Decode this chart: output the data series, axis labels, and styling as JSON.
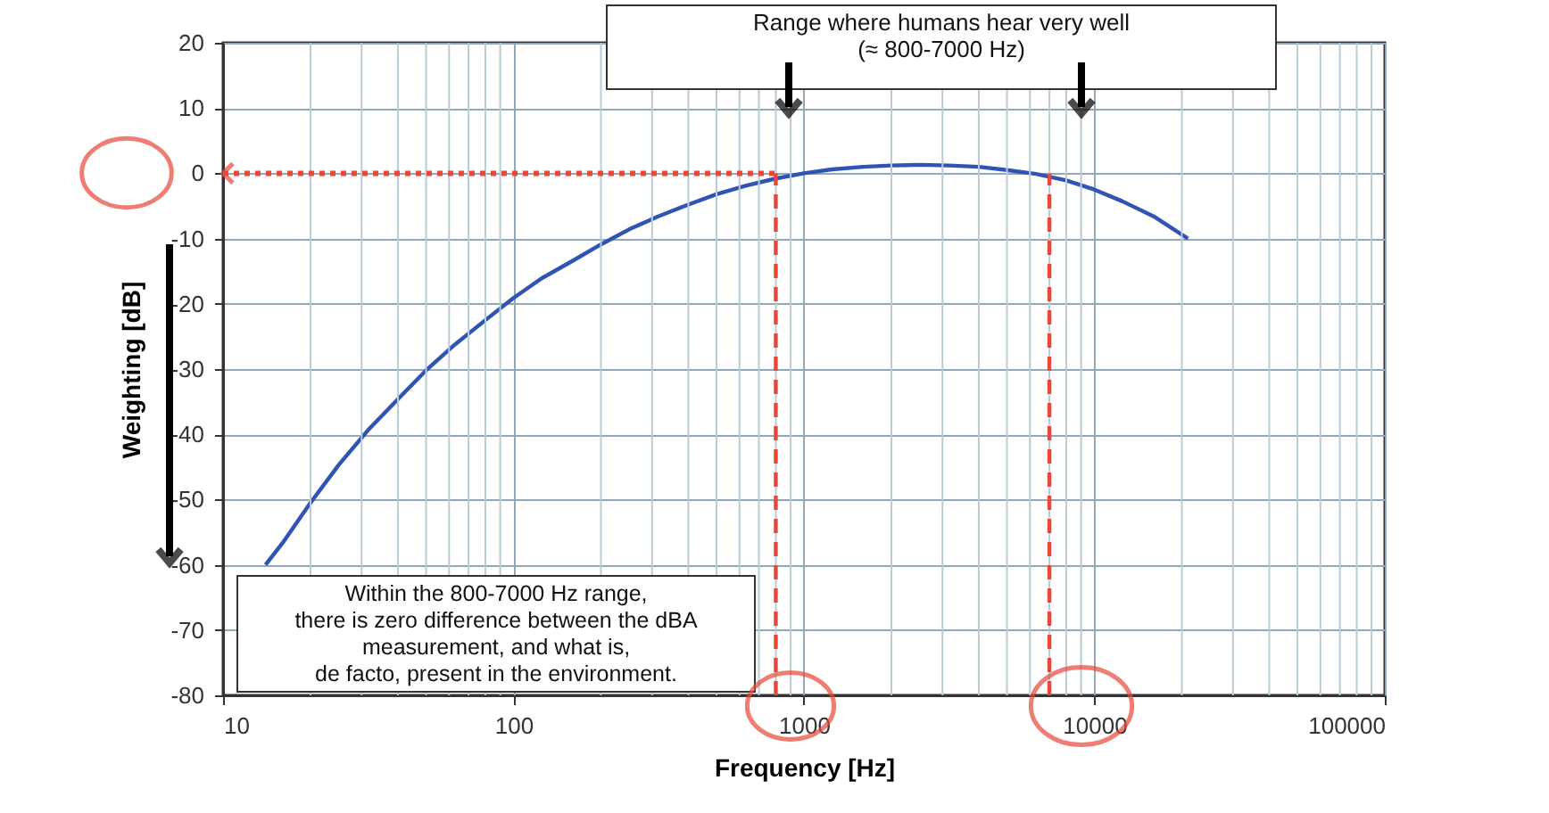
{
  "chart_data": {
    "type": "line",
    "xlabel": "Frequency [Hz]",
    "ylabel": "Weighting [dB]",
    "x": [
      14,
      16,
      20,
      25,
      31.5,
      40,
      50,
      63,
      80,
      100,
      125,
      160,
      200,
      250,
      315,
      400,
      500,
      630,
      800,
      1000,
      1250,
      1600,
      2000,
      2500,
      3150,
      4000,
      5000,
      6300,
      8000,
      10000,
      12500,
      16000,
      21000
    ],
    "series": [
      {
        "color": "#2f54b4",
        "values": [
          -60,
          -56.7,
          -50.5,
          -44.7,
          -39.4,
          -34.6,
          -30.2,
          -26.2,
          -22.5,
          -19.1,
          -16.1,
          -13.4,
          -10.9,
          -8.6,
          -6.6,
          -4.8,
          -3.2,
          -1.9,
          -0.8,
          0,
          0.6,
          1.0,
          1.2,
          1.3,
          1.2,
          1.0,
          0.5,
          -0.1,
          -1.1,
          -2.5,
          -4.3,
          -6.6,
          -10
        ]
      }
    ],
    "log": "x",
    "xlim": [
      10,
      100000
    ],
    "xticks": [
      10,
      100,
      1000,
      10000,
      100000
    ],
    "ylim": [
      -80,
      20
    ],
    "yticks": [
      -80,
      -70,
      -60,
      -50,
      -40,
      -30,
      -20,
      -10,
      0,
      10,
      20
    ],
    "grid": true,
    "legend": false,
    "marker": "none",
    "line_style": "solid",
    "ref_lines": [
      {
        "axis": "x",
        "value": 800,
        "color": "#e8473a",
        "line_style": "dashed"
      },
      {
        "axis": "x",
        "value": 7000,
        "color": "#e8473a",
        "line_style": "dashed"
      },
      {
        "axis": "y",
        "value": 0,
        "color": "#e8473a",
        "line_style": "dotted"
      }
    ],
    "annotations": [
      "Range where humans hear very well\n(≈ 800-7000 Hz)",
      "Within the 800-7000 Hz range,\nthere is zero difference between the dBA\nmeasurement, and what is,\nde facto, present in the environment."
    ]
  }
}
